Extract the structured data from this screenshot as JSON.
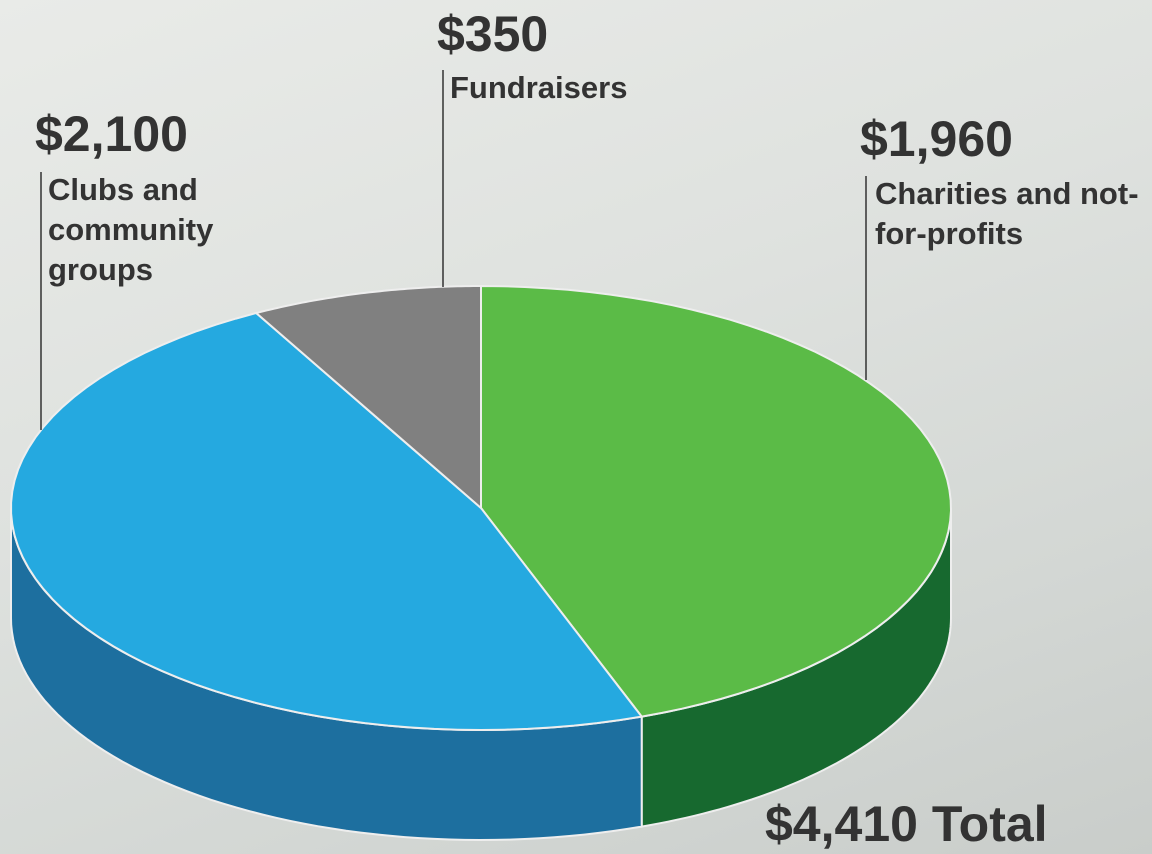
{
  "chart_data": {
    "type": "pie3d",
    "categories": [
      "Charities and not-for-profits",
      "Clubs and community groups",
      "Fundraisers"
    ],
    "values": [
      1960,
      2100,
      350
    ],
    "value_labels": [
      "$1,960",
      "$2,100",
      "$350"
    ],
    "colors": [
      "#5bbb47",
      "#25a9e0",
      "#808080"
    ],
    "side_colors": [
      "#17692f",
      "#1d6f9f",
      "#555555"
    ],
    "total_label": "$4,410 Total"
  }
}
